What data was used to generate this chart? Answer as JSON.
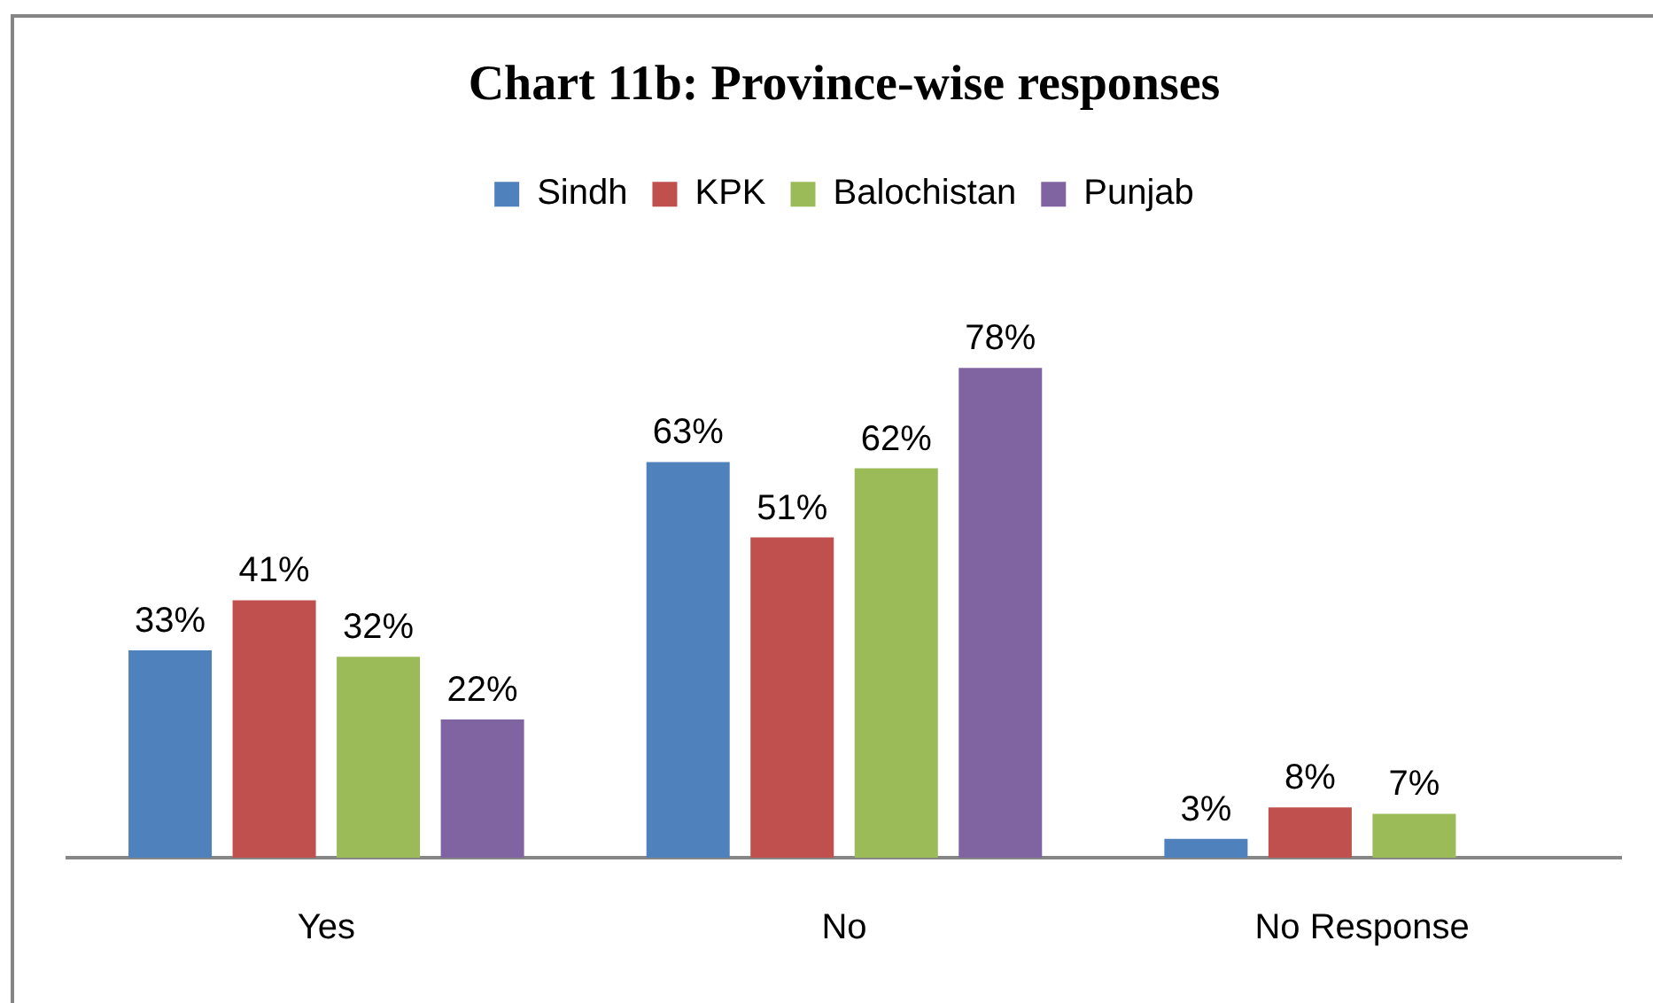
{
  "chart_data": {
    "type": "bar",
    "title": "Chart 11b: Province-wise responses",
    "categories": [
      "Yes",
      "No",
      "No Response"
    ],
    "series": [
      {
        "name": "Sindh",
        "color": "#4f81bd",
        "values": [
          33,
          63,
          3
        ],
        "value_labels": [
          "33%",
          "63%",
          "3%"
        ]
      },
      {
        "name": "KPK",
        "color": "#c0504d",
        "values": [
          41,
          51,
          8
        ],
        "value_labels": [
          "41%",
          "51%",
          "8%"
        ]
      },
      {
        "name": "Balochistan",
        "color": "#9bbb59",
        "values": [
          32,
          62,
          7
        ],
        "value_labels": [
          "32%",
          "62%",
          "7%"
        ]
      },
      {
        "name": "Punjab",
        "color": "#8064a2",
        "values": [
          22,
          78,
          null
        ],
        "value_labels": [
          "22%",
          "78%",
          null
        ]
      }
    ],
    "legend": "top"
  }
}
